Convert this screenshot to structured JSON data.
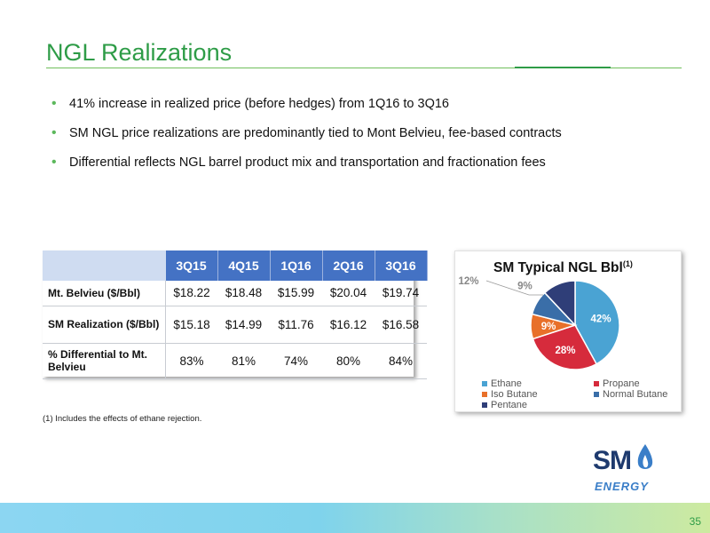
{
  "slide": {
    "title": "NGL Realizations",
    "page_number": "35"
  },
  "bullets": [
    "41% increase in realized price (before hedges) from 1Q16 to 3Q16",
    "SM NGL price realizations are predominantly tied to Mont Belvieu, fee-based contracts",
    "Differential reflects NGL barrel product mix and transportation and fractionation fees"
  ],
  "table": {
    "columns": [
      "3Q15",
      "4Q15",
      "1Q16",
      "2Q16",
      "3Q16"
    ],
    "rows": [
      {
        "label": "Mt. Belvieu ($/Bbl)",
        "values": [
          "$18.22",
          "$18.48",
          "$15.99",
          "$20.04",
          "$19.74"
        ]
      },
      {
        "label": "SM Realization ($/Bbl)",
        "values": [
          "$15.18",
          "$14.99",
          "$11.76",
          "$16.12",
          "$16.58"
        ]
      },
      {
        "label": "% Differential to Mt. Belvieu",
        "values": [
          "83%",
          "81%",
          "74%",
          "80%",
          "84%"
        ]
      }
    ]
  },
  "footnote": "(1)   Includes the effects of ethane rejection.",
  "logo": {
    "top": "SM",
    "bottom": "ENERGY",
    "colors": {
      "navy": "#1e3a6e",
      "blue": "#3a7ec8"
    }
  },
  "chart_data": {
    "type": "pie",
    "title": "SM Typical NGL Bbl",
    "title_superscript": "(1)",
    "categories": [
      "Ethane",
      "Propane",
      "Iso Butane",
      "Normal Butane",
      "Pentane"
    ],
    "values": [
      42,
      28,
      9,
      9,
      12
    ],
    "labels": [
      "42%",
      "28%",
      "9%",
      "9%",
      "12%"
    ],
    "colors": [
      "#4aa3d3",
      "#d62b3c",
      "#e8702a",
      "#3a6ea8",
      "#2f3e78"
    ],
    "legend_position": "bottom"
  }
}
